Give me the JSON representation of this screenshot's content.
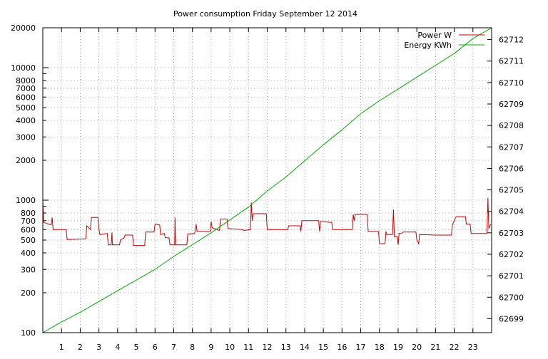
{
  "chart_data": {
    "type": "line",
    "title": "Power consumption Friday September 12 2014",
    "xlabel": "",
    "ylabel": "",
    "y2label": "",
    "grid": true,
    "legend_position": "top-right",
    "x_range": [
      0,
      24
    ],
    "x_ticks": [
      "1",
      "2",
      "3",
      "4",
      "5",
      "6",
      "7",
      "8",
      "9",
      "10",
      "11",
      "12",
      "13",
      "14",
      "15",
      "16",
      "17",
      "18",
      "19",
      "20",
      "21",
      "22",
      "23"
    ],
    "y_scale": "log",
    "y_range": [
      100,
      20000
    ],
    "y_ticks": [
      "100",
      "200",
      "300",
      "400",
      "500",
      "600",
      "700",
      "800",
      "1000",
      "2000",
      "3000",
      "4000",
      "5000",
      "6000",
      "7000",
      "8000",
      "10000",
      "20000"
    ],
    "y2_range": [
      62698.35,
      62712.55
    ],
    "y2_ticks": [
      "62699",
      "62700",
      "62701",
      "62702",
      "62703",
      "62704",
      "62705",
      "62706",
      "62707",
      "62708",
      "62709",
      "62710",
      "62711",
      "62712"
    ],
    "series": [
      {
        "name": "Power W",
        "color": "#cc0000",
        "axis": "left",
        "points": [
          [
            0.0,
            990
          ],
          [
            0.05,
            680
          ],
          [
            0.45,
            650
          ],
          [
            0.5,
            740
          ],
          [
            0.55,
            600
          ],
          [
            1.25,
            600
          ],
          [
            1.3,
            505
          ],
          [
            2.3,
            510
          ],
          [
            2.35,
            640
          ],
          [
            2.55,
            600
          ],
          [
            2.6,
            740
          ],
          [
            2.95,
            740
          ],
          [
            3.0,
            610
          ],
          [
            3.05,
            550
          ],
          [
            3.45,
            560
          ],
          [
            3.5,
            460
          ],
          [
            3.65,
            460
          ],
          [
            3.7,
            570
          ],
          [
            3.72,
            460
          ],
          [
            4.1,
            460
          ],
          [
            4.15,
            500
          ],
          [
            4.35,
            520
          ],
          [
            4.4,
            545
          ],
          [
            4.8,
            545
          ],
          [
            4.85,
            455
          ],
          [
            5.45,
            455
          ],
          [
            5.5,
            575
          ],
          [
            5.95,
            575
          ],
          [
            6.0,
            660
          ],
          [
            6.25,
            650
          ],
          [
            6.3,
            550
          ],
          [
            6.5,
            560
          ],
          [
            6.55,
            520
          ],
          [
            6.75,
            520
          ],
          [
            6.8,
            460
          ],
          [
            7.05,
            460
          ],
          [
            7.07,
            740
          ],
          [
            7.1,
            460
          ],
          [
            7.7,
            460
          ],
          [
            7.75,
            555
          ],
          [
            8.1,
            560
          ],
          [
            8.15,
            580
          ],
          [
            8.2,
            660
          ],
          [
            8.25,
            580
          ],
          [
            8.95,
            580
          ],
          [
            9.0,
            690
          ],
          [
            9.05,
            620
          ],
          [
            9.45,
            590
          ],
          [
            9.5,
            720
          ],
          [
            9.85,
            720
          ],
          [
            9.9,
            610
          ],
          [
            10.7,
            600
          ],
          [
            10.75,
            590
          ],
          [
            11.1,
            600
          ],
          [
            11.15,
            960
          ],
          [
            11.2,
            700
          ],
          [
            11.25,
            790
          ],
          [
            11.95,
            790
          ],
          [
            12.0,
            600
          ],
          [
            13.1,
            600
          ],
          [
            13.15,
            640
          ],
          [
            13.75,
            640
          ],
          [
            13.8,
            580
          ],
          [
            13.85,
            700
          ],
          [
            14.75,
            700
          ],
          [
            14.8,
            580
          ],
          [
            14.85,
            690
          ],
          [
            15.45,
            680
          ],
          [
            15.5,
            600
          ],
          [
            16.55,
            600
          ],
          [
            16.6,
            780
          ],
          [
            16.65,
            700
          ],
          [
            16.7,
            780
          ],
          [
            17.35,
            780
          ],
          [
            17.4,
            580
          ],
          [
            17.95,
            580
          ],
          [
            18.0,
            470
          ],
          [
            18.3,
            470
          ],
          [
            18.35,
            580
          ],
          [
            18.4,
            550
          ],
          [
            18.7,
            550
          ],
          [
            18.75,
            850
          ],
          [
            18.8,
            530
          ],
          [
            18.95,
            530
          ],
          [
            19.0,
            460
          ],
          [
            19.05,
            560
          ],
          [
            19.2,
            560
          ],
          [
            19.25,
            575
          ],
          [
            19.95,
            575
          ],
          [
            20.0,
            500
          ],
          [
            20.1,
            470
          ],
          [
            20.15,
            550
          ],
          [
            21.0,
            545
          ],
          [
            21.85,
            545
          ],
          [
            21.9,
            650
          ],
          [
            22.0,
            700
          ],
          [
            22.1,
            750
          ],
          [
            22.6,
            750
          ],
          [
            22.65,
            660
          ],
          [
            22.85,
            660
          ],
          [
            22.9,
            560
          ],
          [
            23.75,
            560
          ],
          [
            23.8,
            1040
          ],
          [
            23.85,
            610
          ],
          [
            23.95,
            660
          ]
        ]
      },
      {
        "name": "Energy KWh",
        "color": "#00aa00",
        "axis": "right",
        "points": [
          [
            0.0,
            62698.35
          ],
          [
            1.0,
            62698.85
          ],
          [
            2.0,
            62699.3
          ],
          [
            3.0,
            62699.8
          ],
          [
            4.0,
            62700.3
          ],
          [
            5.0,
            62700.8
          ],
          [
            6.0,
            62701.3
          ],
          [
            7.0,
            62701.9
          ],
          [
            8.0,
            62702.45
          ],
          [
            9.0,
            62703.0
          ],
          [
            10.0,
            62703.6
          ],
          [
            11.0,
            62704.2
          ],
          [
            12.0,
            62704.95
          ],
          [
            13.0,
            62705.6
          ],
          [
            14.0,
            62706.35
          ],
          [
            15.0,
            62707.1
          ],
          [
            16.0,
            62707.8
          ],
          [
            17.0,
            62708.55
          ],
          [
            18.0,
            62709.15
          ],
          [
            19.0,
            62709.7
          ],
          [
            20.0,
            62710.25
          ],
          [
            21.0,
            62710.8
          ],
          [
            22.0,
            62711.35
          ],
          [
            23.0,
            62712.05
          ],
          [
            24.0,
            62712.55
          ]
        ]
      }
    ]
  }
}
